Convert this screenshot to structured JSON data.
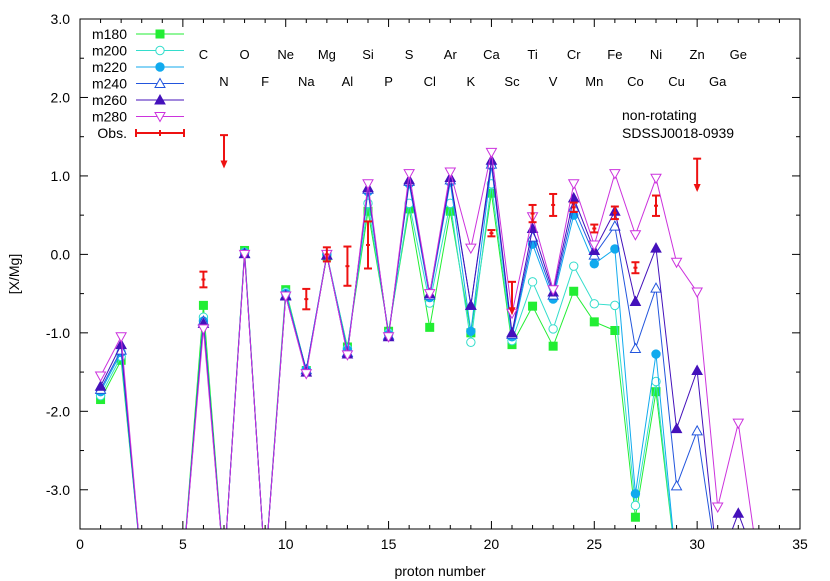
{
  "chart_data": {
    "type": "line",
    "xlabel": "proton number",
    "ylabel": "[X/Mg]",
    "xlim": [
      0,
      35
    ],
    "ylim": [
      -3.5,
      3.0
    ],
    "xticks": [
      0,
      5,
      10,
      15,
      20,
      25,
      30,
      35
    ],
    "yticks": [
      {
        "v": 3.0,
        "label": "3.0"
      },
      {
        "v": 2.0,
        "label": "2.0"
      },
      {
        "v": 1.0,
        "label": "1.0"
      },
      {
        "v": 0.0,
        "label": "0.0"
      },
      {
        "v": -1.0,
        "label": "-1.0"
      },
      {
        "v": -2.0,
        "label": "-2.0"
      },
      {
        "v": -3.0,
        "label": "-3.0"
      }
    ],
    "grid": false,
    "legend_position": "top-left",
    "annotations": [
      "non-rotating",
      "SDSSJ0018-0939"
    ],
    "element_labels_top": [
      {
        "z": 6,
        "label": "C"
      },
      {
        "z": 8,
        "label": "O"
      },
      {
        "z": 10,
        "label": "Ne"
      },
      {
        "z": 12,
        "label": "Mg"
      },
      {
        "z": 14,
        "label": "Si"
      },
      {
        "z": 16,
        "label": "S"
      },
      {
        "z": 18,
        "label": "Ar"
      },
      {
        "z": 20,
        "label": "Ca"
      },
      {
        "z": 22,
        "label": "Ti"
      },
      {
        "z": 24,
        "label": "Cr"
      },
      {
        "z": 26,
        "label": "Fe"
      },
      {
        "z": 28,
        "label": "Ni"
      },
      {
        "z": 30,
        "label": "Zn"
      },
      {
        "z": 32,
        "label": "Ge"
      }
    ],
    "element_labels_bottom": [
      {
        "z": 7,
        "label": "N"
      },
      {
        "z": 9,
        "label": "F"
      },
      {
        "z": 11,
        "label": "Na"
      },
      {
        "z": 13,
        "label": "Al"
      },
      {
        "z": 15,
        "label": "P"
      },
      {
        "z": 17,
        "label": "Cl"
      },
      {
        "z": 19,
        "label": "K"
      },
      {
        "z": 21,
        "label": "Sc"
      },
      {
        "z": 23,
        "label": "V"
      },
      {
        "z": 25,
        "label": "Mn"
      },
      {
        "z": 27,
        "label": "Co"
      },
      {
        "z": 29,
        "label": "Cu"
      },
      {
        "z": 31,
        "label": "Ga"
      }
    ],
    "series": [
      {
        "name": "m180",
        "color": "#22ee33",
        "marker": "square-filled",
        "x": [
          1,
          2,
          3,
          5,
          6,
          7,
          8,
          9,
          10,
          11,
          12,
          13,
          14,
          15,
          16,
          17,
          18,
          19,
          20,
          21,
          22,
          23,
          24,
          25,
          26,
          27,
          28,
          29
        ],
        "y": [
          -1.85,
          -1.35,
          -4.0,
          -4.0,
          -0.65,
          -4.0,
          0.05,
          -4.0,
          -0.45,
          -1.48,
          -0.02,
          -1.18,
          0.55,
          -0.98,
          0.58,
          -0.93,
          0.55,
          -1.0,
          0.78,
          -1.15,
          -0.66,
          -1.17,
          -0.47,
          -0.86,
          -0.97,
          -3.35,
          -1.75,
          -4.0
        ]
      },
      {
        "name": "m200",
        "color": "#33ddcc",
        "marker": "circle-open",
        "x": [
          1,
          2,
          3,
          5,
          6,
          7,
          8,
          9,
          10,
          11,
          12,
          13,
          14,
          15,
          16,
          17,
          18,
          19,
          20,
          21,
          22,
          23,
          24,
          25,
          26,
          27,
          28,
          29
        ],
        "y": [
          -1.8,
          -1.3,
          -4.0,
          -4.0,
          -0.8,
          -4.0,
          0.03,
          -4.0,
          -0.48,
          -1.47,
          0.0,
          -1.2,
          0.65,
          -1.0,
          0.65,
          -0.62,
          0.65,
          -1.12,
          0.9,
          -1.1,
          -0.35,
          -0.95,
          -0.15,
          -0.63,
          -0.65,
          -3.2,
          -1.62,
          -4.0
        ]
      },
      {
        "name": "m220",
        "color": "#11aaee",
        "marker": "circle-filled",
        "x": [
          1,
          2,
          3,
          5,
          6,
          7,
          8,
          9,
          10,
          11,
          12,
          13,
          14,
          15,
          16,
          17,
          18,
          19,
          20,
          21,
          22,
          23,
          24,
          25,
          26,
          27,
          28,
          29
        ],
        "y": [
          -1.75,
          -1.25,
          -4.0,
          -4.0,
          -0.85,
          -4.0,
          0.02,
          -4.0,
          -0.5,
          -1.47,
          0.0,
          -1.22,
          0.8,
          -1.02,
          0.9,
          -0.55,
          0.92,
          -0.98,
          1.13,
          -1.05,
          0.13,
          -0.57,
          0.5,
          -0.12,
          0.07,
          -3.05,
          -1.27,
          -4.0
        ]
      },
      {
        "name": "m240",
        "color": "#2255dd",
        "marker": "triangle-open",
        "x": [
          1,
          2,
          3,
          5,
          6,
          7,
          8,
          9,
          10,
          11,
          12,
          13,
          14,
          15,
          16,
          17,
          18,
          19,
          20,
          21,
          22,
          23,
          24,
          25,
          26,
          27,
          28,
          29,
          30,
          31
        ],
        "y": [
          -1.72,
          -1.22,
          -4.0,
          -4.0,
          -0.85,
          -4.0,
          0.01,
          -4.0,
          -0.52,
          -1.47,
          -0.01,
          -1.25,
          0.83,
          -1.03,
          0.93,
          -0.52,
          0.95,
          -0.65,
          1.15,
          -1.02,
          0.22,
          -0.52,
          0.6,
          -0.01,
          0.36,
          -1.2,
          -0.43,
          -2.95,
          -2.25,
          -4.0
        ]
      },
      {
        "name": "m260",
        "color": "#4411bb",
        "marker": "triangle-filled",
        "x": [
          1,
          2,
          3,
          5,
          6,
          7,
          8,
          9,
          10,
          11,
          12,
          13,
          14,
          15,
          16,
          17,
          18,
          19,
          20,
          21,
          22,
          23,
          24,
          25,
          26,
          27,
          28,
          29,
          30,
          31,
          32,
          33
        ],
        "y": [
          -1.68,
          -1.15,
          -4.0,
          -4.0,
          -0.88,
          -4.0,
          0.01,
          -4.0,
          -0.53,
          -1.5,
          -0.01,
          -1.27,
          0.85,
          -1.05,
          0.95,
          -0.5,
          0.98,
          -0.65,
          1.2,
          -1.0,
          0.33,
          -0.48,
          0.72,
          0.05,
          0.55,
          -0.6,
          0.08,
          -2.22,
          -1.48,
          -4.0,
          -3.3,
          -4.0
        ]
      },
      {
        "name": "m280",
        "color": "#cc33dd",
        "marker": "triangle-down-open",
        "x": [
          1,
          2,
          3,
          5,
          6,
          7,
          8,
          9,
          10,
          11,
          12,
          13,
          14,
          15,
          16,
          17,
          18,
          19,
          20,
          21,
          22,
          23,
          24,
          25,
          26,
          27,
          28,
          29,
          30,
          31,
          32,
          33
        ],
        "y": [
          -1.55,
          -1.05,
          -4.0,
          -4.0,
          -0.95,
          -4.0,
          0.0,
          -4.0,
          -0.53,
          -1.52,
          0.0,
          -1.28,
          0.9,
          -1.05,
          1.03,
          -0.5,
          1.05,
          0.08,
          1.3,
          -0.75,
          0.48,
          -0.45,
          0.9,
          0.12,
          1.03,
          0.25,
          0.97,
          -0.1,
          -0.48,
          -3.22,
          -2.15,
          -4.0
        ]
      }
    ],
    "observations": {
      "name": "Obs.",
      "color": "#ee1111",
      "points": [
        {
          "x": 6,
          "y": -0.32,
          "err": 0.1
        },
        {
          "x": 7,
          "y": 1.45,
          "upper_limit": true
        },
        {
          "x": 11,
          "y": -0.57,
          "err": 0.13
        },
        {
          "x": 12,
          "y": 0.0,
          "err": 0.09
        },
        {
          "x": 13,
          "y": -0.15,
          "err": 0.25
        },
        {
          "x": 14,
          "y": 0.12,
          "err": 0.3
        },
        {
          "x": 20,
          "y": 0.27,
          "err": 0.04
        },
        {
          "x": 21,
          "y": -0.42,
          "upper_limit": true
        },
        {
          "x": 22,
          "y": 0.52,
          "err": 0.11
        },
        {
          "x": 23,
          "y": 0.63,
          "err": 0.14
        },
        {
          "x": 24,
          "y": 0.6,
          "err": 0.06
        },
        {
          "x": 25,
          "y": 0.33,
          "err": 0.05
        },
        {
          "x": 26,
          "y": 0.53,
          "err": 0.08
        },
        {
          "x": 27,
          "y": -0.17,
          "err": 0.07
        },
        {
          "x": 28,
          "y": 0.62,
          "err": 0.13
        },
        {
          "x": 30,
          "y": 1.15,
          "upper_limit": true
        }
      ]
    }
  }
}
